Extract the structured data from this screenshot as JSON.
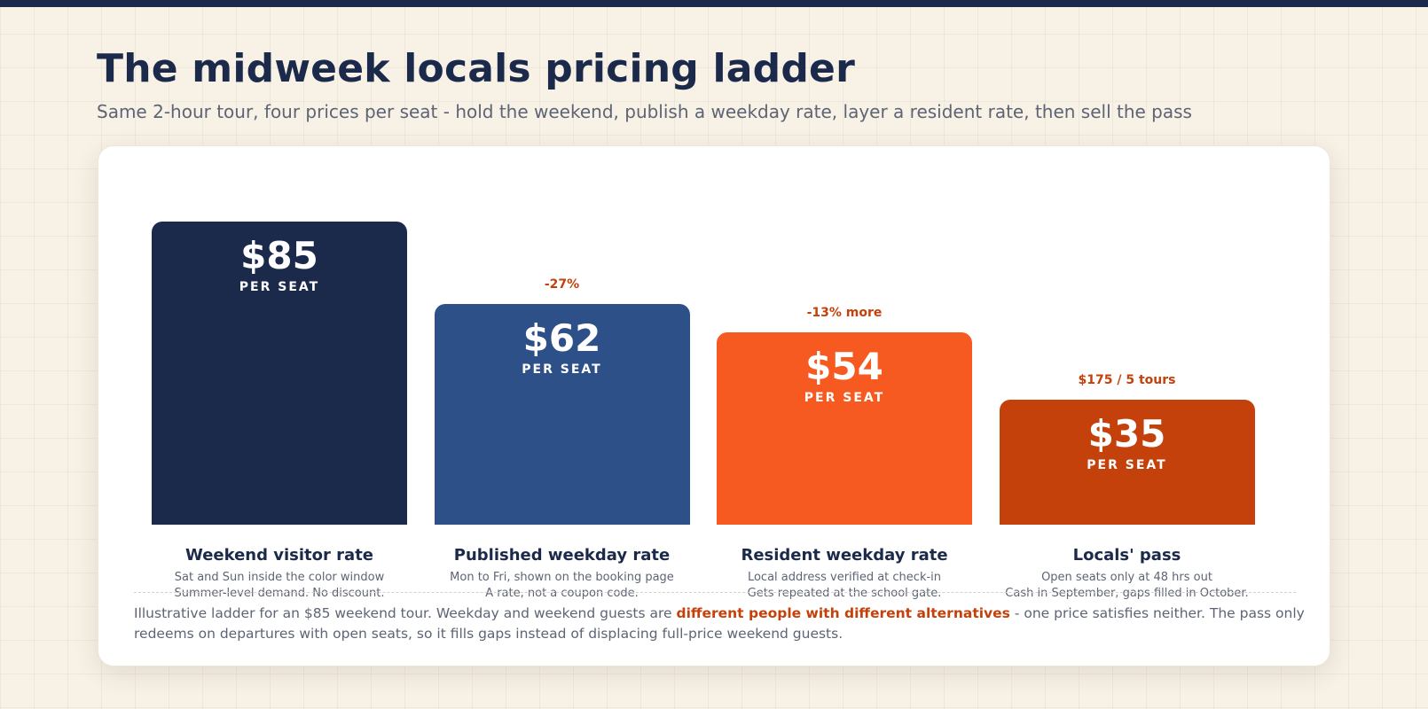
{
  "title": "The midweek locals pricing ladder",
  "subtitle": "Same 2-hour tour, four prices per seat - hold the weekend, publish a weekday rate, layer a resident rate, then sell the pass",
  "chart_data": {
    "type": "bar",
    "ylim": [
      0,
      85
    ],
    "unit_label": "PER SEAT",
    "categories": [
      "Weekend visitor rate",
      "Published weekday rate",
      "Resident weekday rate",
      "Locals' pass"
    ],
    "values": [
      85,
      62,
      54,
      35
    ],
    "value_labels": [
      "$85",
      "$62",
      "$54",
      "$35"
    ],
    "annotations": [
      "",
      "-27%",
      "-13% more",
      "$175 / 5 tours"
    ],
    "descriptions": [
      [
        "Sat and Sun inside the color window",
        "Summer-level demand. No discount."
      ],
      [
        "Mon to Fri, shown on the booking page",
        "A rate, not a coupon code."
      ],
      [
        "Local address verified at check-in",
        "Gets repeated at the school gate."
      ],
      [
        "Open seats only at 48 hrs out",
        "Cash in September, gaps filled in October."
      ]
    ],
    "colors": [
      "#1b2a4a",
      "#2e5088",
      "#f65a20",
      "#c4410b"
    ]
  },
  "footnote": {
    "before": "Illustrative ladder for an $85 weekend tour. Weekday and weekend guests are ",
    "highlight": "different people with different alternatives",
    "after": " - one price satisfies neither. The pass only redeems on departures with open seats, so it fills gaps instead of displacing full-price weekend guests."
  },
  "colors": {
    "accent": "#c4410b",
    "navy": "#1b2a4a",
    "background": "#f7f1e6"
  }
}
